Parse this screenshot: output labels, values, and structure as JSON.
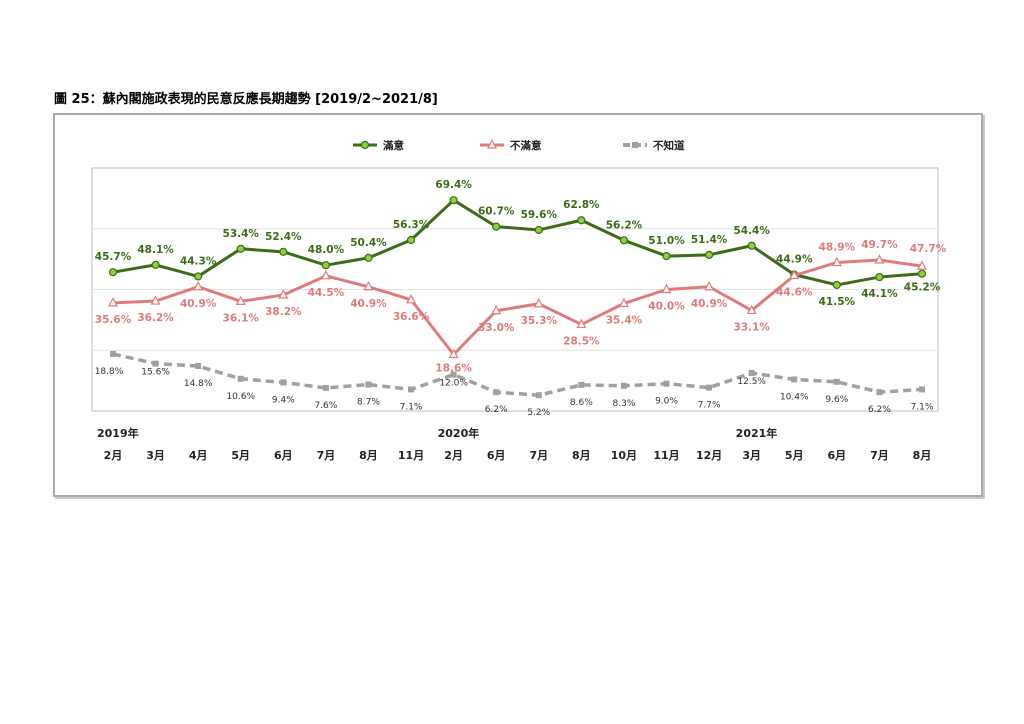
{
  "figure": {
    "title": "圖 25：蘇內閣施政表現的民意反應長期趨勢  [2019/2~2021/8]"
  },
  "chart_data": {
    "type": "line",
    "categories": [
      "2月",
      "3月",
      "4月",
      "5月",
      "6月",
      "7月",
      "8月",
      "11月",
      "2月",
      "6月",
      "7月",
      "8月",
      "10月",
      "11月",
      "12月",
      "3月",
      "5月",
      "6月",
      "7月",
      "8月"
    ],
    "year_labels": [
      {
        "index": 0,
        "label": "2019年"
      },
      {
        "index": 8,
        "label": "2020年"
      },
      {
        "index": 15,
        "label": "2021年"
      }
    ],
    "ylim": [
      0,
      80
    ],
    "grid": "horizontal",
    "legend_position": "top",
    "series": [
      {
        "name": "滿意",
        "color": "#3e6b18",
        "marker": "circle",
        "values": [
          45.7,
          48.1,
          44.3,
          53.4,
          52.4,
          48.0,
          50.4,
          56.3,
          69.4,
          60.7,
          59.6,
          62.8,
          56.2,
          51.0,
          51.4,
          54.4,
          44.9,
          41.5,
          44.1,
          45.2
        ],
        "labels": [
          "45.7%",
          "48.1%",
          "44.3%",
          "53.4%",
          "52.4%",
          "48.0%",
          "50.4%",
          "56.3%",
          "69.4%",
          "60.7%",
          "59.6%",
          "62.8%",
          "56.2%",
          "51.0%",
          "51.4%",
          "54.4%",
          "44.9%",
          "41.5%",
          "44.1%",
          "45.2%"
        ]
      },
      {
        "name": "不滿意",
        "color": "#e07b7b",
        "marker": "triangle",
        "values": [
          35.6,
          36.2,
          40.9,
          36.1,
          38.2,
          44.5,
          40.9,
          36.6,
          18.6,
          33.0,
          35.3,
          28.5,
          35.4,
          40.0,
          40.9,
          33.1,
          44.6,
          48.9,
          49.7,
          47.7
        ],
        "labels": [
          "35.6%",
          "36.2%",
          "40.9%",
          "36.1%",
          "38.2%",
          "44.5%",
          "40.9%",
          "36.6%",
          "18.6%",
          "33.0%",
          "35.3%",
          "28.5%",
          "35.4%",
          "40.0%",
          "40.9%",
          "33.1%",
          "44.6%",
          "48.9%",
          "49.7%",
          "47.7%"
        ]
      },
      {
        "name": "不知道",
        "color": "#a0a0a0",
        "marker": "square",
        "dashed": true,
        "values": [
          18.8,
          15.6,
          14.8,
          10.6,
          9.4,
          7.6,
          8.7,
          7.1,
          12.0,
          6.2,
          5.2,
          8.6,
          8.3,
          9.0,
          7.7,
          12.5,
          10.4,
          9.6,
          6.2,
          7.1
        ],
        "labels": [
          "18.8%",
          "15.6%",
          "14.8%",
          "10.6%",
          "9.4%",
          "7.6%",
          "8.7%",
          "7.1%",
          "12.0%",
          "6.2%",
          "5.2%",
          "8.6%",
          "8.3%",
          "9.0%",
          "7.7%",
          "12.5%",
          "10.4%",
          "9.6%",
          "6.2%",
          "7.1%"
        ]
      }
    ]
  }
}
